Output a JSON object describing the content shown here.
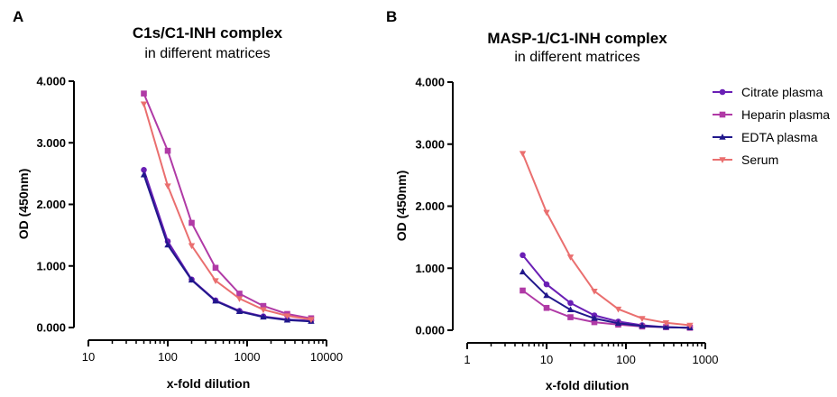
{
  "panels": [
    {
      "letter": "A",
      "title": "C1s/C1-INH complex",
      "subtitle": "in different matrices",
      "ylabel": "OD (450nm)",
      "xlabel": "x-fold dilution"
    },
    {
      "letter": "B",
      "title": "MASP-1/C1-INH complex",
      "subtitle": "in different matrices",
      "ylabel": "OD (450nm)",
      "xlabel": "x-fold dilution"
    }
  ],
  "legend": [
    {
      "label": "Citrate plasma"
    },
    {
      "label": "Heparin plasma"
    },
    {
      "label": "EDTA plasma"
    },
    {
      "label": "Serum"
    }
  ],
  "chart_data": [
    {
      "type": "line",
      "title": "C1s/C1-INH complex in different matrices",
      "xlabel": "x-fold dilution",
      "ylabel": "OD (450nm)",
      "xscale": "log",
      "xlim": [
        10,
        10000
      ],
      "ylim": [
        0,
        4
      ],
      "x_ticks": [
        "10",
        "100",
        "1000",
        "10000"
      ],
      "y_ticks": [
        "0.000",
        "1.000",
        "2.000",
        "3.000",
        "4.000"
      ],
      "x": [
        50,
        100,
        200,
        400,
        800,
        1600,
        3200,
        6400
      ],
      "series": [
        {
          "name": "Citrate plasma",
          "color": "#6a1fb5",
          "marker": "circle",
          "values": [
            2.56,
            1.4,
            0.78,
            0.44,
            0.27,
            0.18,
            0.13,
            0.11
          ]
        },
        {
          "name": "Heparin plasma",
          "color": "#b03aa6",
          "marker": "square",
          "values": [
            3.8,
            2.87,
            1.7,
            0.97,
            0.55,
            0.35,
            0.22,
            0.15
          ]
        },
        {
          "name": "EDTA plasma",
          "color": "#21188c",
          "marker": "triangle-up",
          "values": [
            2.48,
            1.34,
            0.77,
            0.43,
            0.26,
            0.17,
            0.12,
            0.1
          ]
        },
        {
          "name": "Serum",
          "color": "#ea6f6f",
          "marker": "triangle-down",
          "values": [
            3.63,
            2.3,
            1.33,
            0.76,
            0.47,
            0.29,
            0.19,
            0.13
          ]
        }
      ]
    },
    {
      "type": "line",
      "title": "MASP-1/C1-INH complex in different matrices",
      "xlabel": "x-fold dilution",
      "ylabel": "OD (450nm)",
      "xscale": "log",
      "xlim": [
        1,
        1000
      ],
      "ylim": [
        0,
        4
      ],
      "x_ticks": [
        "1",
        "10",
        "100",
        "1000"
      ],
      "y_ticks": [
        "0.000",
        "1.000",
        "2.000",
        "3.000",
        "4.000"
      ],
      "legend_position": "top-right",
      "x": [
        5,
        10,
        20,
        40,
        80,
        160,
        320,
        640
      ],
      "series": [
        {
          "name": "Citrate plasma",
          "color": "#6a1fb5",
          "marker": "circle",
          "values": [
            1.21,
            0.74,
            0.44,
            0.24,
            0.14,
            0.08,
            0.05,
            0.04
          ]
        },
        {
          "name": "Heparin plasma",
          "color": "#b03aa6",
          "marker": "square",
          "values": [
            0.64,
            0.36,
            0.21,
            0.13,
            0.09,
            0.06,
            0.05,
            0.04
          ]
        },
        {
          "name": "EDTA plasma",
          "color": "#21188c",
          "marker": "triangle-up",
          "values": [
            0.94,
            0.56,
            0.33,
            0.19,
            0.11,
            0.07,
            0.05,
            0.04
          ]
        },
        {
          "name": "Serum",
          "color": "#ea6f6f",
          "marker": "triangle-down",
          "values": [
            2.85,
            1.9,
            1.18,
            0.63,
            0.34,
            0.19,
            0.12,
            0.08
          ]
        }
      ]
    }
  ]
}
